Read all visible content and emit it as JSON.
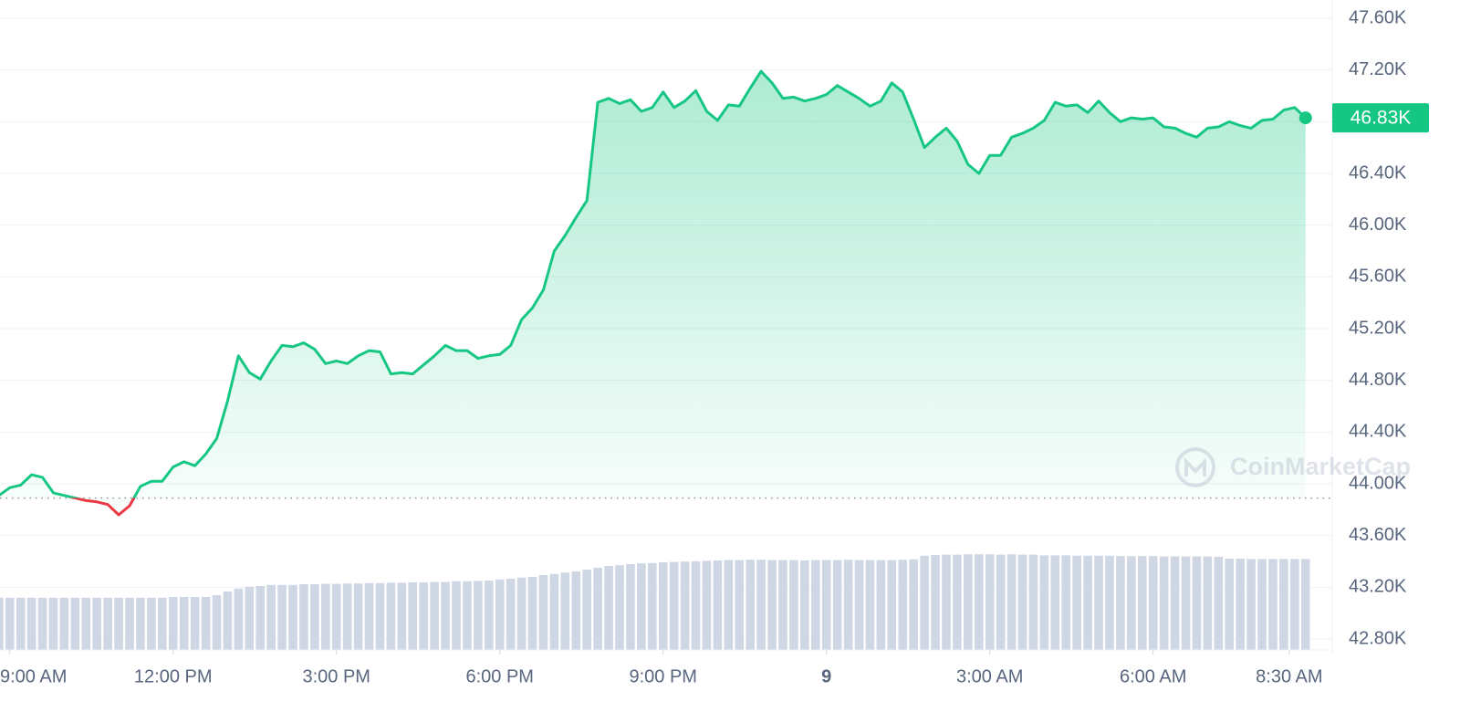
{
  "chart_data": {
    "type": "line",
    "color": "#16c784",
    "down_color": "#ea3943",
    "volume_color": "#cfd6e4",
    "grid": true,
    "reference_price": 43890,
    "last_price": {
      "value": 46830,
      "label": "46.83K"
    },
    "watermark": "CoinMarketCap",
    "xlim": [
      8.82,
      33.29
    ],
    "ylim": [
      42800,
      47600
    ],
    "volume_lim": [
      0,
      30
    ],
    "xticks": [
      {
        "value": 9,
        "label": "9:00 AM"
      },
      {
        "value": 12,
        "label": "12:00 PM"
      },
      {
        "value": 15,
        "label": "3:00 PM"
      },
      {
        "value": 18,
        "label": "6:00 PM"
      },
      {
        "value": 21,
        "label": "9:00 PM"
      },
      {
        "value": 24,
        "label": "9"
      },
      {
        "value": 27,
        "label": "3:00 AM"
      },
      {
        "value": 30,
        "label": "6:00 AM"
      },
      {
        "value": 32.5,
        "label": "8:30 AM"
      }
    ],
    "yticks": [
      {
        "value": 47600,
        "label": "47.60K"
      },
      {
        "value": 47200,
        "label": "47.20K"
      },
      {
        "value": 46800,
        "label": "46.80K"
      },
      {
        "value": 46400,
        "label": "46.40K"
      },
      {
        "value": 46000,
        "label": "46.00K"
      },
      {
        "value": 45600,
        "label": "45.60K"
      },
      {
        "value": 45200,
        "label": "45.20K"
      },
      {
        "value": 44800,
        "label": "44.80K"
      },
      {
        "value": 44400,
        "label": "44.40K"
      },
      {
        "value": 44000,
        "label": "44.00K"
      },
      {
        "value": 43600,
        "label": "43.60K"
      },
      {
        "value": 43200,
        "label": "43.20K"
      },
      {
        "value": 42800,
        "label": "42.80K"
      }
    ],
    "x": [
      8.8,
      9,
      9.2,
      9.4,
      9.6,
      9.8,
      10,
      10.2,
      10.4,
      10.6,
      10.8,
      11,
      11.2,
      11.4,
      11.6,
      11.8,
      12,
      12.2,
      12.4,
      12.6,
      12.8,
      13,
      13.2,
      13.4,
      13.6,
      13.8,
      14,
      14.2,
      14.4,
      14.6,
      14.8,
      15,
      15.2,
      15.4,
      15.6,
      15.8,
      16,
      16.2,
      16.4,
      16.6,
      16.8,
      17,
      17.2,
      17.4,
      17.6,
      17.8,
      18,
      18.2,
      18.4,
      18.6,
      18.8,
      19,
      19.2,
      19.4,
      19.6,
      19.8,
      20,
      20.2,
      20.4,
      20.6,
      20.8,
      21,
      21.2,
      21.4,
      21.6,
      21.8,
      22,
      22.2,
      22.4,
      22.6,
      22.8,
      23,
      23.2,
      23.4,
      23.6,
      23.8,
      24,
      24.2,
      24.4,
      24.6,
      24.8,
      25,
      25.2,
      25.4,
      25.6,
      25.8,
      26,
      26.2,
      26.4,
      26.6,
      26.8,
      27,
      27.2,
      27.4,
      27.6,
      27.8,
      28,
      28.2,
      28.4,
      28.6,
      28.8,
      29,
      29.2,
      29.4,
      29.6,
      29.8,
      30,
      30.2,
      30.4,
      30.6,
      30.8,
      31,
      31.2,
      31.4,
      31.6,
      31.8,
      32,
      32.2,
      32.4,
      32.6,
      32.8
    ],
    "values": [
      43910,
      43970,
      43990,
      44070,
      44050,
      43930,
      43910,
      43890,
      43870,
      43860,
      43840,
      43760,
      43830,
      43980,
      44020,
      44020,
      44130,
      44170,
      44140,
      44230,
      44350,
      44640,
      44990,
      44860,
      44810,
      44950,
      45070,
      45060,
      45090,
      45040,
      44930,
      44950,
      44930,
      44990,
      45030,
      45020,
      44850,
      44860,
      44850,
      44920,
      44990,
      45070,
      45030,
      45030,
      44970,
      44990,
      45000,
      45070,
      45270,
      45360,
      45500,
      45800,
      45920,
      46060,
      46190,
      46950,
      46980,
      46940,
      46970,
      46880,
      46910,
      47030,
      46910,
      46960,
      47040,
      46880,
      46810,
      46930,
      46920,
      47060,
      47190,
      47100,
      46980,
      46990,
      46960,
      46980,
      47010,
      47080,
      47030,
      46980,
      46920,
      46960,
      47100,
      47030,
      46820,
      46600,
      46680,
      46750,
      46650,
      46470,
      46400,
      46540,
      46540,
      46680,
      46710,
      46750,
      46810,
      46950,
      46920,
      46930,
      46870,
      46960,
      46870,
      46800,
      46830,
      46820,
      46830,
      46760,
      46750,
      46710,
      46680,
      46750,
      46760,
      46800,
      46770,
      46750,
      46810,
      46820,
      46890,
      46910,
      46830
    ],
    "volume": [
      14.3,
      14.3,
      14.3,
      14.3,
      14.3,
      14.3,
      14.3,
      14.3,
      14.3,
      14.3,
      14.3,
      14.3,
      14.3,
      14.3,
      14.3,
      14.3,
      14.5,
      14.5,
      14.5,
      14.5,
      15.0,
      16.0,
      16.8,
      17.3,
      17.5,
      17.8,
      17.8,
      17.8,
      18.0,
      18.0,
      18.1,
      18.1,
      18.2,
      18.2,
      18.3,
      18.3,
      18.4,
      18.4,
      18.5,
      18.5,
      18.6,
      18.6,
      18.8,
      18.8,
      18.9,
      19.0,
      19.3,
      19.5,
      19.8,
      20.0,
      20.5,
      20.8,
      21.2,
      21.5,
      22.0,
      22.5,
      23.0,
      23.2,
      23.5,
      23.7,
      23.8,
      24.0,
      24.1,
      24.2,
      24.3,
      24.4,
      24.5,
      24.6,
      24.6,
      24.7,
      24.7,
      24.6,
      24.6,
      24.6,
      24.5,
      24.6,
      24.6,
      24.6,
      24.7,
      24.6,
      24.6,
      24.6,
      24.6,
      24.7,
      24.8,
      25.8,
      26.0,
      26.1,
      26.1,
      26.2,
      26.2,
      26.2,
      26.1,
      26.2,
      26.1,
      26.1,
      25.9,
      25.9,
      25.9,
      25.8,
      25.8,
      25.8,
      25.8,
      25.7,
      25.7,
      25.7,
      25.7,
      25.6,
      25.6,
      25.6,
      25.6,
      25.6,
      25.5,
      25.0,
      25.0,
      24.9,
      24.9,
      24.9,
      24.9,
      24.9,
      24.9
    ]
  }
}
